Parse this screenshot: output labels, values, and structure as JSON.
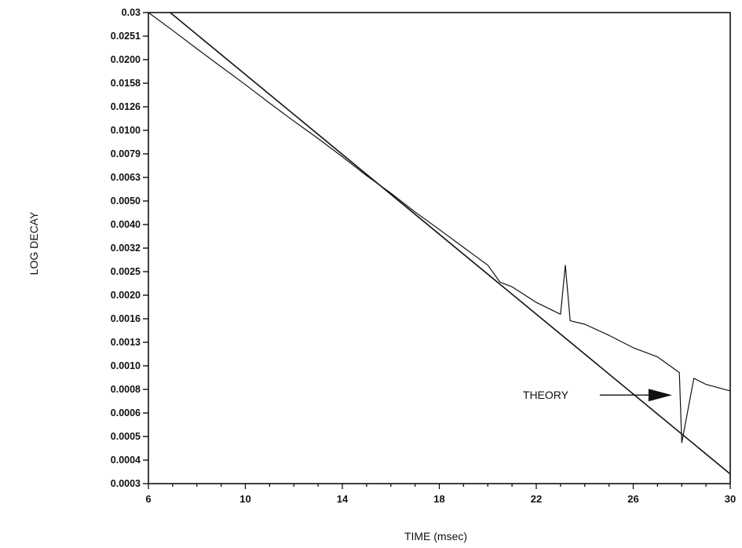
{
  "chart_data": {
    "type": "line",
    "title": "",
    "xlabel": "TIME (msec)",
    "ylabel": "LOG DECAY",
    "xlim": [
      6,
      30
    ],
    "ylim": [
      0.0003,
      0.0316
    ],
    "yscale": "log",
    "grid": false,
    "x_ticks": [
      "6",
      "10",
      "14",
      "18",
      "22",
      "26",
      "30"
    ],
    "y_ticks": [
      "0.03",
      "0.0251",
      "0.0200",
      "0.0158",
      "0.0126",
      "0.0100",
      "0.0079",
      "0.0063",
      "0.0050",
      "0.0040",
      "0.0032",
      "0.0025",
      "0.0020",
      "0.0016",
      "0.0013",
      "0.0010",
      "0.0008",
      "0.0006",
      "0.0005",
      "0.0004",
      "0.0003"
    ],
    "series": [
      {
        "role": "measured",
        "x": [
          6,
          7,
          8,
          9,
          10,
          11,
          12,
          13,
          14,
          15,
          16,
          17,
          18,
          19,
          20,
          20.5,
          21,
          22,
          23,
          23.2,
          23.4,
          24,
          25,
          26,
          27,
          27.9,
          28,
          28.5,
          29,
          30
        ],
        "y": [
          0.0316,
          0.0265,
          0.0221,
          0.0185,
          0.0155,
          0.0129,
          0.0108,
          0.0091,
          0.0076,
          0.0063,
          0.0053,
          0.0044,
          0.0037,
          0.0031,
          0.0026,
          0.0022,
          0.0021,
          0.0018,
          0.0016,
          0.0026,
          0.0015,
          0.00145,
          0.0013,
          0.00115,
          0.00105,
          0.0009,
          0.00045,
          0.00085,
          0.0008,
          0.00075
        ]
      },
      {
        "role": "theory",
        "x": [
          6.9,
          30
        ],
        "y": [
          0.0316,
          0.00033
        ]
      }
    ],
    "annotations": [
      {
        "text": "THEORY",
        "arrow_to": [
          27.6,
          0.00072
        ]
      }
    ]
  }
}
